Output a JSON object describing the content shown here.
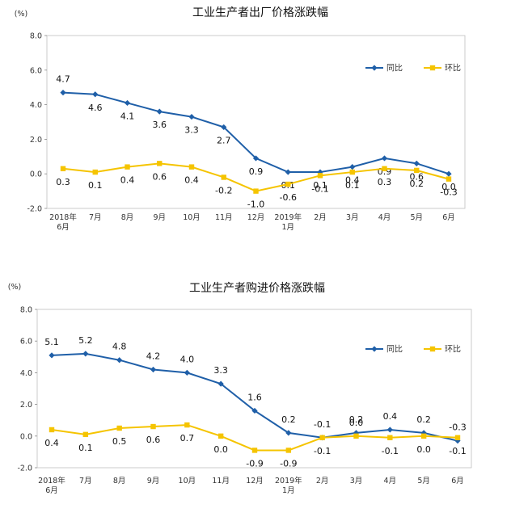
{
  "chart_data": [
    {
      "type": "line",
      "title": "工业生产者出厂价格涨跌幅",
      "unit_label": "(%)",
      "categories": [
        [
          "2018年",
          "6月"
        ],
        [
          "7月"
        ],
        [
          "8月"
        ],
        [
          "9月"
        ],
        [
          "10月"
        ],
        [
          "11月"
        ],
        [
          "12月"
        ],
        [
          "2019年",
          "1月"
        ],
        [
          "2月"
        ],
        [
          "3月"
        ],
        [
          "4月"
        ],
        [
          "5月"
        ],
        [
          "6月"
        ]
      ],
      "ylim": [
        -2.0,
        8.0
      ],
      "yticks": [
        "8.0",
        "6.0",
        "4.0",
        "2.0",
        "0.0",
        "-2.0"
      ],
      "legend_position": "top-right",
      "series": [
        {
          "name": "同比",
          "color": "#1f5fa8",
          "marker": "diamond",
          "values": [
            4.7,
            4.6,
            4.1,
            3.6,
            3.3,
            2.7,
            0.9,
            0.1,
            0.1,
            0.4,
            0.9,
            0.6,
            0.0
          ],
          "labels": [
            "4.7",
            "4.6",
            "4.1",
            "3.6",
            "3.3",
            "2.7",
            "0.9",
            "0.1",
            "0.1",
            "0.4",
            "0.9",
            "0.6",
            "0.0"
          ]
        },
        {
          "name": "环比",
          "color": "#f5c400",
          "marker": "square",
          "values": [
            0.3,
            0.1,
            0.4,
            0.6,
            0.4,
            -0.2,
            -1.0,
            -0.6,
            -0.1,
            0.1,
            0.3,
            0.2,
            -0.3
          ],
          "labels": [
            "0.3",
            "0.1",
            "0.4",
            "0.6",
            "0.4",
            "-0.2",
            "-1.0",
            "-0.6",
            "-0.1",
            "0.1",
            "0.3",
            "0.2",
            "-0.3"
          ]
        }
      ]
    },
    {
      "type": "line",
      "title": "工业生产者购进价格涨跌幅",
      "unit_label": "(%)",
      "categories": [
        [
          "2018年",
          "6月"
        ],
        [
          "7月"
        ],
        [
          "8月"
        ],
        [
          "9月"
        ],
        [
          "10月"
        ],
        [
          "11月"
        ],
        [
          "12月"
        ],
        [
          "2019年",
          "1月"
        ],
        [
          "2月"
        ],
        [
          "3月"
        ],
        [
          "4月"
        ],
        [
          "5月"
        ],
        [
          "6月"
        ]
      ],
      "ylim": [
        -2.0,
        8.0
      ],
      "yticks": [
        "8.0",
        "6.0",
        "4.0",
        "2.0",
        "0.0",
        "-2.0"
      ],
      "legend_position": "top-right",
      "series": [
        {
          "name": "同比",
          "color": "#1f5fa8",
          "marker": "diamond",
          "values": [
            5.1,
            5.2,
            4.8,
            4.2,
            4.0,
            3.3,
            1.6,
            0.2,
            -0.1,
            0.2,
            0.4,
            0.2,
            -0.3
          ],
          "labels": [
            "5.1",
            "5.2",
            "4.8",
            "4.2",
            "4.0",
            "3.3",
            "1.6",
            "0.2",
            "-0.1",
            "0.2",
            "0.4",
            "0.2",
            "-0.3"
          ]
        },
        {
          "name": "环比",
          "color": "#f5c400",
          "marker": "square",
          "values": [
            0.4,
            0.1,
            0.5,
            0.6,
            0.7,
            0.0,
            -0.9,
            -0.9,
            -0.1,
            0.0,
            -0.1,
            0.0,
            -0.1
          ],
          "labels": [
            "0.4",
            "0.1",
            "0.5",
            "0.6",
            "0.7",
            "0.0",
            "-0.9",
            "-0.9",
            "-0.1",
            "0.0",
            "-0.1",
            "0.0",
            "-0.1"
          ]
        }
      ]
    }
  ]
}
